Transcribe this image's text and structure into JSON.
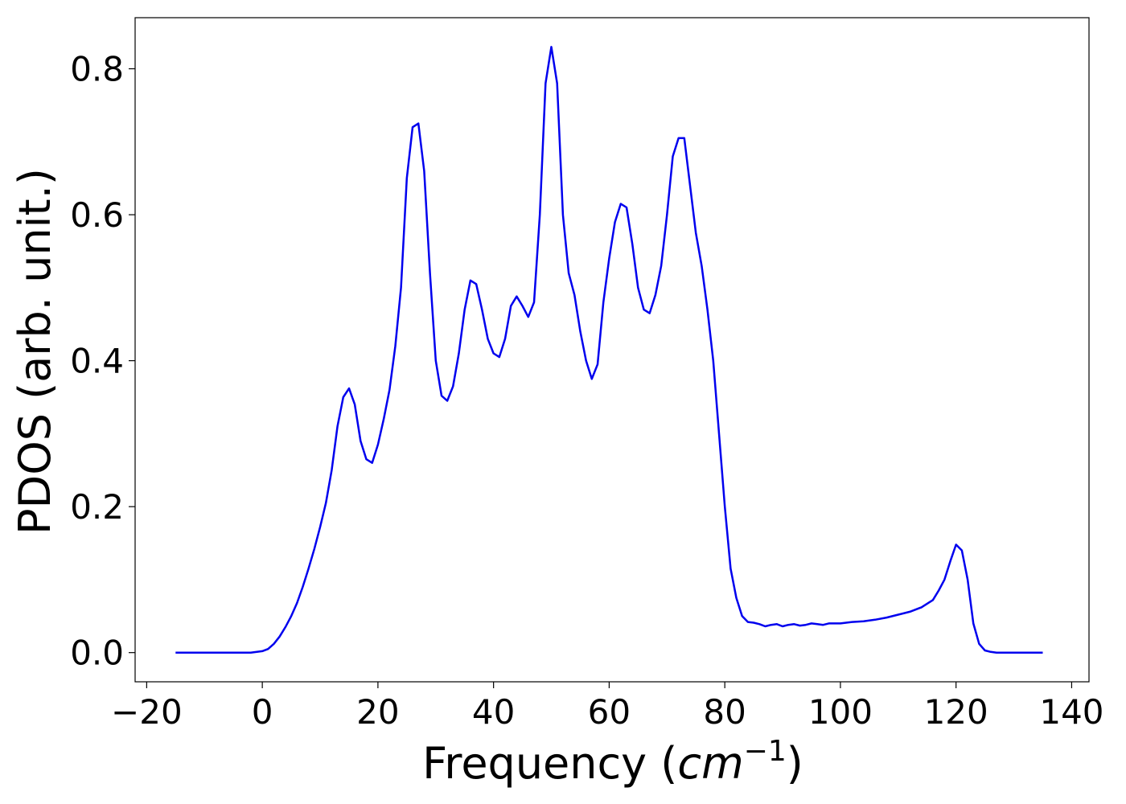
{
  "chart_data": {
    "type": "line",
    "title": "",
    "xlabel": "Frequency",
    "xlabel_unit_base": "cm",
    "xlabel_unit_exp": "−1",
    "ylabel": "PDOS (arb. unit.)",
    "xlim": [
      -22,
      143
    ],
    "ylim": [
      -0.04,
      0.87
    ],
    "xticks": [
      -20,
      0,
      20,
      40,
      60,
      80,
      100,
      120,
      140
    ],
    "xtick_labels": [
      "−20",
      "0",
      "20",
      "40",
      "60",
      "80",
      "100",
      "120",
      "140"
    ],
    "yticks": [
      0.0,
      0.2,
      0.4,
      0.6,
      0.8
    ],
    "ytick_labels": [
      "0.0",
      "0.2",
      "0.4",
      "0.6",
      "0.8"
    ],
    "grid": false,
    "legend": false,
    "series": [
      {
        "color": "#0000ee",
        "x": [
          -15,
          -10,
          -5,
          -2,
          0,
          1,
          2,
          3,
          4,
          5,
          6,
          7,
          8,
          9,
          10,
          11,
          12,
          13,
          14,
          15,
          16,
          17,
          18,
          19,
          20,
          21,
          22,
          23,
          24,
          25,
          26,
          27,
          28,
          29,
          30,
          31,
          32,
          33,
          34,
          35,
          36,
          37,
          38,
          39,
          40,
          41,
          42,
          43,
          44,
          45,
          46,
          47,
          48,
          49,
          50,
          51,
          52,
          53,
          54,
          55,
          56,
          57,
          58,
          59,
          60,
          61,
          62,
          63,
          64,
          65,
          66,
          67,
          68,
          69,
          70,
          71,
          72,
          73,
          74,
          75,
          76,
          77,
          78,
          79,
          80,
          81,
          82,
          83,
          84,
          85,
          86,
          87,
          88,
          89,
          90,
          91,
          92,
          93,
          94,
          95,
          96,
          97,
          98,
          100,
          102,
          104,
          106,
          108,
          110,
          112,
          114,
          116,
          117,
          118,
          119,
          120,
          121,
          122,
          123,
          124,
          125,
          126,
          127,
          130,
          135
        ],
        "y": [
          0.0,
          0.0,
          0.0,
          0.0,
          0.002,
          0.005,
          0.012,
          0.022,
          0.035,
          0.05,
          0.068,
          0.09,
          0.115,
          0.142,
          0.172,
          0.205,
          0.25,
          0.31,
          0.35,
          0.362,
          0.34,
          0.29,
          0.265,
          0.26,
          0.285,
          0.32,
          0.36,
          0.42,
          0.5,
          0.65,
          0.72,
          0.725,
          0.66,
          0.52,
          0.4,
          0.352,
          0.345,
          0.365,
          0.41,
          0.47,
          0.51,
          0.505,
          0.47,
          0.43,
          0.41,
          0.405,
          0.43,
          0.475,
          0.488,
          0.475,
          0.46,
          0.48,
          0.6,
          0.78,
          0.83,
          0.78,
          0.6,
          0.52,
          0.49,
          0.44,
          0.4,
          0.375,
          0.395,
          0.48,
          0.54,
          0.59,
          0.615,
          0.61,
          0.56,
          0.5,
          0.47,
          0.465,
          0.49,
          0.53,
          0.6,
          0.68,
          0.705,
          0.705,
          0.64,
          0.575,
          0.53,
          0.47,
          0.4,
          0.3,
          0.2,
          0.115,
          0.075,
          0.05,
          0.042,
          0.041,
          0.039,
          0.036,
          0.038,
          0.039,
          0.036,
          0.038,
          0.039,
          0.037,
          0.038,
          0.04,
          0.039,
          0.038,
          0.04,
          0.04,
          0.042,
          0.043,
          0.045,
          0.048,
          0.052,
          0.056,
          0.062,
          0.072,
          0.085,
          0.1,
          0.125,
          0.148,
          0.14,
          0.1,
          0.04,
          0.012,
          0.003,
          0.001,
          0.0,
          0.0,
          0.0
        ]
      }
    ]
  }
}
